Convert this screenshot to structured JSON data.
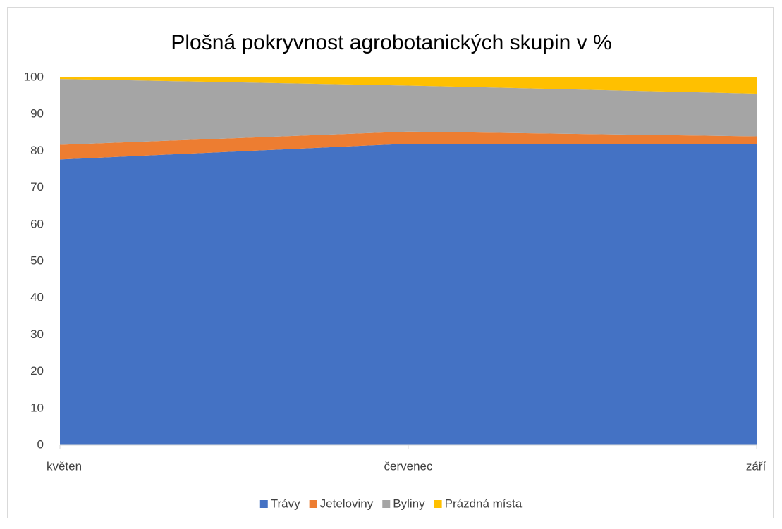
{
  "chart_data": {
    "type": "stacked_area",
    "title": "Plošná pokryvnost agrobotanických skupin v %",
    "categories": [
      "květen",
      "červenec",
      "září"
    ],
    "series": [
      {
        "name": "Trávy",
        "color": "#4472c4",
        "values": [
          77.7,
          82,
          82
        ]
      },
      {
        "name": "Jeteloviny",
        "color": "#ed7d31",
        "values": [
          4,
          3.3,
          2
        ]
      },
      {
        "name": "Byliny",
        "color": "#a5a5a5",
        "values": [
          17.9,
          12.5,
          11.6
        ]
      },
      {
        "name": "Prázdná místa",
        "color": "#ffc000",
        "values": [
          0.4,
          2.2,
          4.4
        ]
      }
    ],
    "ylim": [
      0,
      100
    ],
    "yticks": [
      0,
      10,
      20,
      30,
      40,
      50,
      60,
      70,
      80,
      90,
      100
    ],
    "grid": false,
    "legend": "bottom"
  }
}
